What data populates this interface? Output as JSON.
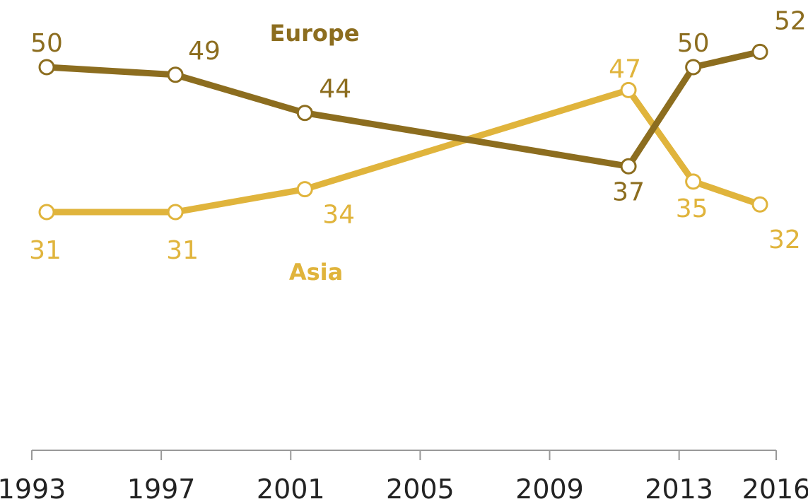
{
  "chart_data": {
    "type": "line",
    "x": [
      1993,
      1997,
      2001,
      2011,
      2013,
      2016
    ],
    "x_ticks": [
      "1993",
      "1997",
      "2001",
      "2005",
      "2009",
      "2013",
      "2016"
    ],
    "ylim": [
      0,
      56
    ],
    "grid": false,
    "legend": "inline labels",
    "series": [
      {
        "name": "Europe",
        "color": "#8c6d1f",
        "values": [
          50,
          49,
          44,
          37,
          50,
          52
        ]
      },
      {
        "name": "Asia",
        "color": "#e0b43c",
        "values": [
          31,
          31,
          34,
          47,
          35,
          32
        ]
      }
    ]
  }
}
